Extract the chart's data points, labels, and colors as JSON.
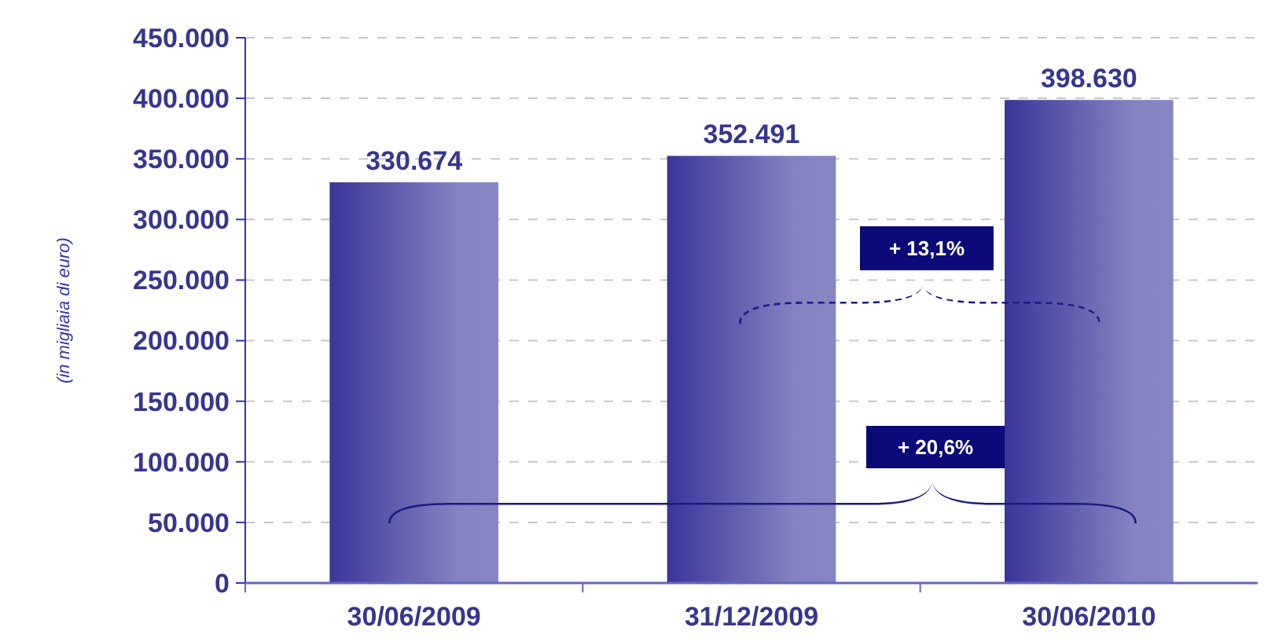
{
  "chart_data": {
    "type": "bar",
    "ylabel": "(in migliaia di euro)",
    "categories": [
      "30/06/2009",
      "31/12/2009",
      "30/06/2010"
    ],
    "values": [
      330674,
      352491,
      398630
    ],
    "color": "#39369a",
    "value_labels": [
      "330.674",
      "352.491",
      "398.630"
    ],
    "ylim": [
      0,
      450000
    ],
    "yticks": [
      {
        "value": 0,
        "label": "0"
      },
      {
        "value": 50000,
        "label": "50.000"
      },
      {
        "value": 100000,
        "label": "100.000"
      },
      {
        "value": 150000,
        "label": "150.000"
      },
      {
        "value": 200000,
        "label": "200.000"
      },
      {
        "value": 250000,
        "label": "250.000"
      },
      {
        "value": 300000,
        "label": "300.000"
      },
      {
        "value": 350000,
        "label": "350.000"
      },
      {
        "value": 400000,
        "label": "400.000"
      },
      {
        "value": 450000,
        "label": "450.000"
      }
    ],
    "grid": "y",
    "annotations": [
      "+ 13,1%",
      "+ 20,6%"
    ]
  }
}
